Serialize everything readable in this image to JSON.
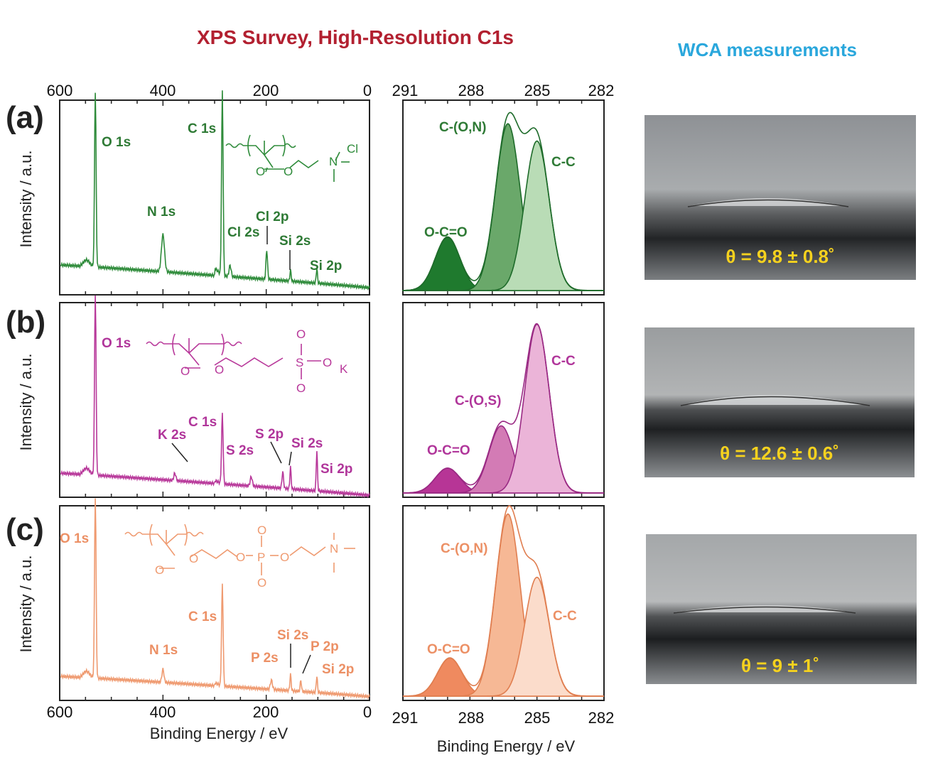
{
  "titles": {
    "xps": "XPS Survey, High-Resolution C1s",
    "wca": "WCA measurements"
  },
  "colors": {
    "xps_title": "#b22030",
    "wca_title": "#2aa7dc",
    "a": "#2e8b3a",
    "a_dark": "#1e6b2a",
    "b": "#b8389a",
    "b_dark": "#9a2a84",
    "c": "#ef9a70",
    "c_dark": "#e07e50",
    "wca_text": "#f6d21e"
  },
  "axis_labels": {
    "survey_x": "Binding Energy / eV",
    "c1s_x": "Binding Energy / eV",
    "y": "Intensity / a.u."
  },
  "panels": [
    {
      "label": "(a)",
      "survey_peaks": [
        "O 1s",
        "N 1s",
        "C 1s",
        "Cl 2s",
        "Cl 2p",
        "Si 2s",
        "Si 2p"
      ],
      "c1s_peaks": [
        "O-C=O",
        "C-(O,N)",
        "C-C"
      ],
      "contact_angle": "θ = 9.8 ± 0.8˚",
      "structure_text": [
        "O",
        "O",
        "N",
        "Cl"
      ]
    },
    {
      "label": "(b)",
      "survey_peaks": [
        "O 1s",
        "K 2s",
        "C 1s",
        "S 2s",
        "S 2p",
        "Si 2s",
        "Si 2p"
      ],
      "c1s_peaks": [
        "O-C=O",
        "C-(O,S)",
        "C-C"
      ],
      "contact_angle": "θ = 12.6 ± 0.6˚",
      "structure_text": [
        "O",
        "O",
        "S",
        "O",
        "O",
        "O",
        "K"
      ]
    },
    {
      "label": "(c)",
      "survey_peaks": [
        "O 1s",
        "N 1s",
        "C 1s",
        "P 2s",
        "Si 2s",
        "P 2p",
        "Si 2p"
      ],
      "c1s_peaks": [
        "O-C=O",
        "C-(O,N)",
        "C-C"
      ],
      "contact_angle": "θ = 9 ± 1˚",
      "structure_text": [
        "O",
        "O",
        "O",
        "P",
        "O",
        "O",
        "O",
        "N"
      ]
    }
  ],
  "chart_data": [
    {
      "type": "line",
      "name_hint": "survey",
      "x_ticks": [
        "600",
        "400",
        "200",
        "0"
      ],
      "xlim": [
        600,
        0
      ],
      "xlabel": "Binding Energy / eV",
      "ylabel": "Intensity / a.u.",
      "series_peaks_eV": {
        "a": [
          531,
          400,
          285,
          270,
          199,
          153,
          102
        ],
        "b": [
          531,
          377,
          285,
          229,
          168,
          153,
          102
        ],
        "c": [
          531,
          400,
          285,
          190,
          153,
          133,
          102
        ]
      }
    },
    {
      "type": "area",
      "name_hint": "c1s",
      "x_ticks": [
        "291",
        "288",
        "285",
        "282"
      ],
      "xlim": [
        291,
        282
      ],
      "xlabel": "Binding Energy / eV",
      "components": {
        "a": [
          {
            "center": 289.0,
            "height": 0.28
          },
          {
            "center": 286.3,
            "height": 0.87
          },
          {
            "center": 285.0,
            "height": 0.78
          }
        ],
        "b": [
          {
            "center": 289.0,
            "height": 0.13
          },
          {
            "center": 286.6,
            "height": 0.35
          },
          {
            "center": 285.0,
            "height": 0.88
          }
        ],
        "c": [
          {
            "center": 288.9,
            "height": 0.2
          },
          {
            "center": 286.3,
            "height": 0.95
          },
          {
            "center": 285.0,
            "height": 0.62
          }
        ]
      }
    }
  ]
}
